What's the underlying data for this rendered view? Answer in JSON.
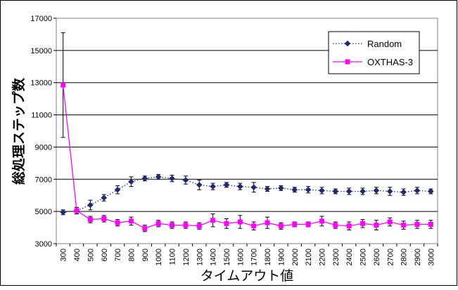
{
  "chart_data": {
    "type": "line",
    "title": "",
    "xlabel": "タイムアウト値",
    "ylabel": "総処理ステップ数",
    "x": [
      300,
      400,
      500,
      600,
      700,
      800,
      900,
      1000,
      1100,
      1200,
      1300,
      1400,
      1500,
      1600,
      1700,
      1800,
      1900,
      2000,
      2100,
      2200,
      2300,
      2400,
      2500,
      2600,
      2700,
      2800,
      2900,
      3000
    ],
    "ylim": [
      3000,
      17000
    ],
    "yticks": [
      3000,
      5000,
      7000,
      9000,
      11000,
      13000,
      15000,
      17000
    ],
    "grid": "horizontal",
    "legend_position": "top-right",
    "series": [
      {
        "name": "Random",
        "color": "#1f2a6e",
        "line_style": "dotted",
        "marker": "diamond",
        "values": [
          4950,
          5050,
          5400,
          5850,
          6350,
          6850,
          7050,
          7150,
          7050,
          6950,
          6650,
          6550,
          6650,
          6550,
          6500,
          6400,
          6450,
          6350,
          6350,
          6300,
          6250,
          6250,
          6250,
          6300,
          6250,
          6200,
          6300,
          6250
        ],
        "errors": [
          150,
          200,
          300,
          200,
          250,
          300,
          150,
          150,
          200,
          250,
          300,
          200,
          150,
          200,
          300,
          150,
          150,
          150,
          200,
          200,
          150,
          200,
          200,
          200,
          250,
          200,
          200,
          150
        ]
      },
      {
        "name": "OXTHAS-3",
        "color": "#ff00ff",
        "line_style": "solid",
        "marker": "square",
        "values": [
          12850,
          5050,
          4500,
          4550,
          4300,
          4400,
          3950,
          4250,
          4150,
          4150,
          4100,
          4450,
          4250,
          4350,
          4100,
          4300,
          4100,
          4200,
          4200,
          4400,
          4150,
          4100,
          4250,
          4150,
          4350,
          4150,
          4200,
          4200
        ],
        "errors": [
          3250,
          200,
          200,
          200,
          200,
          250,
          200,
          200,
          200,
          200,
          200,
          400,
          300,
          400,
          250,
          350,
          200,
          150,
          150,
          300,
          200,
          250,
          250,
          300,
          250,
          250,
          250,
          250
        ]
      }
    ]
  }
}
